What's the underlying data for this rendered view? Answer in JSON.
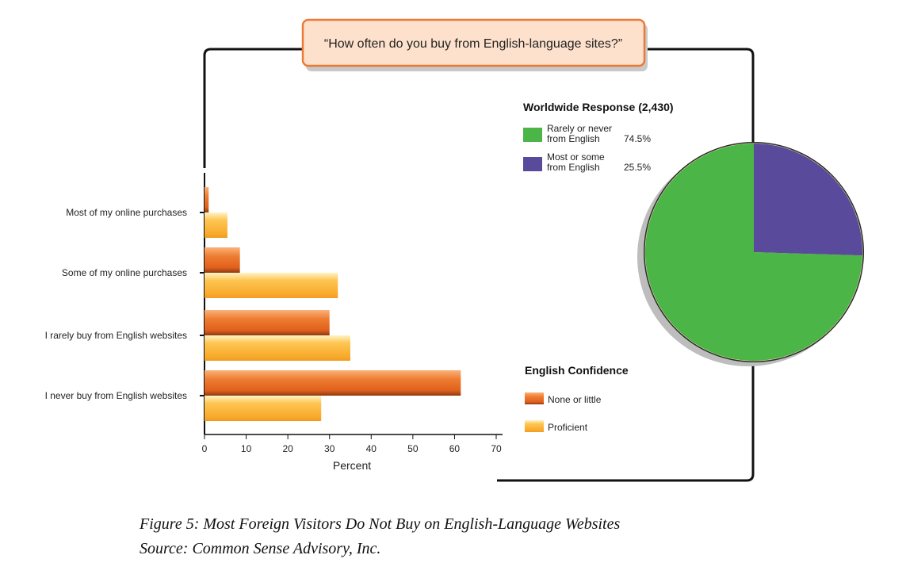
{
  "question": "“How often do you buy from English-language sites?”",
  "caption": {
    "line1": "Figure 5: Most Foreign Visitors Do Not Buy on English-Language Websites",
    "line2": "Source: Common Sense Advisory, Inc."
  },
  "colors": {
    "none_or_little": "#e8722c",
    "proficient": "#f9b531",
    "rarely_never": "#4cb548",
    "most_some": "#5a4a9b",
    "frame": "#111111",
    "question_box_fill": "#fde1cd",
    "question_box_border": "#ec7a36"
  },
  "chart_data": [
    {
      "type": "bar",
      "orientation": "horizontal",
      "categories": [
        "Most of my online purchases",
        "Some of my online purchases",
        "I rarely buy from English websites",
        "I never buy from English websites"
      ],
      "series": [
        {
          "name": "None or little",
          "values": [
            1,
            8.5,
            30,
            61.5
          ]
        },
        {
          "name": "Proficient",
          "values": [
            5.5,
            32,
            35,
            28
          ]
        }
      ],
      "xlabel": "Percent",
      "xlim": [
        0,
        70
      ],
      "xticks": [
        0,
        10,
        20,
        30,
        40,
        50,
        60,
        70
      ],
      "legend_title": "English Confidence",
      "legend_position": "bottom-right"
    },
    {
      "type": "pie",
      "title": "Worldwide Response (2,430)",
      "slices": [
        {
          "label_line1": "Rarely or never",
          "label_line2": "from English",
          "value": 74.5,
          "value_label": "74.5%"
        },
        {
          "label_line1": "Most or some",
          "label_line2": "from English",
          "value": 25.5,
          "value_label": "25.5%"
        }
      ],
      "legend_position": "top-right"
    }
  ]
}
